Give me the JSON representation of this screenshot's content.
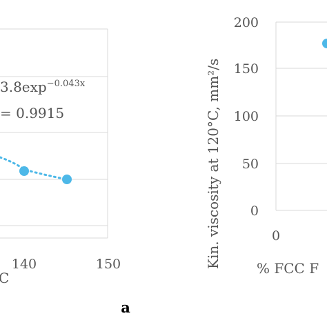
{
  "chart_data": [
    {
      "type": "scatter",
      "x_ticks": [
        "140",
        "150"
      ],
      "xlabel": "C",
      "points": [
        {
          "x": 140,
          "y": 40
        },
        {
          "x": 145,
          "y": 36
        }
      ],
      "trendline": {
        "style": "dotted",
        "equation": "3.8exp",
        "exponent": "−0.043x",
        "r2_text": "= 0.9915"
      },
      "series_color": "#4db8e8",
      "grid": true
    },
    {
      "type": "scatter",
      "ylabel": "Kin. viscosity at 120°C, mm²/s",
      "xlabel": "% FCC F",
      "y_ticks": [
        "0",
        "50",
        "100",
        "150",
        "200"
      ],
      "x_ticks": [
        "0"
      ],
      "ylim": [
        0,
        200
      ],
      "points": [
        {
          "x": 5,
          "y": 176
        }
      ],
      "series_color": "#4db8e8",
      "grid": true
    }
  ],
  "panel_label": "a"
}
